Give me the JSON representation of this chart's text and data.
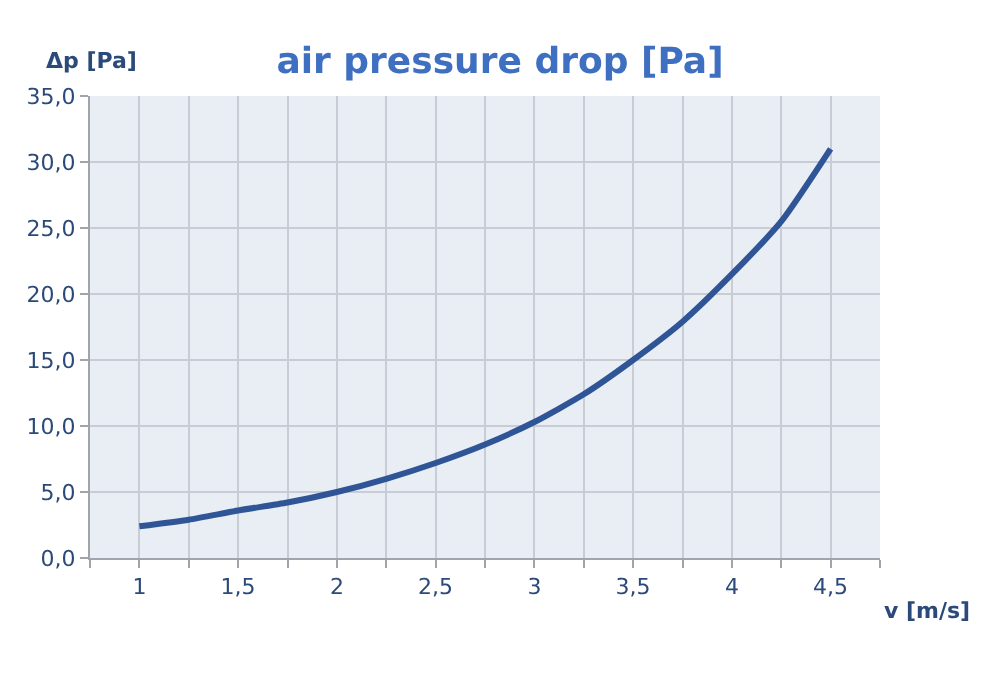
{
  "chart_data": {
    "type": "line",
    "title": "air pressure drop [Pa]",
    "xlabel": "v [m/s]",
    "ylabel": "Δp [Pa]",
    "x": [
      1,
      1.25,
      1.5,
      1.75,
      2,
      2.25,
      2.5,
      2.75,
      3,
      3.25,
      3.5,
      3.75,
      4,
      4.25,
      4.5
    ],
    "series": [
      {
        "color": "#2f5597",
        "values": [
          2.4,
          2.9,
          3.6,
          4.2,
          5.0,
          6.0,
          7.2,
          8.6,
          10.3,
          12.4,
          15.0,
          17.9,
          21.5,
          25.5,
          31.0
        ]
      }
    ],
    "xlim": [
      0.75,
      4.75
    ],
    "xticks": [
      {
        "value": 0.75,
        "label": null
      },
      {
        "value": 1,
        "label": "1"
      },
      {
        "value": 1.25,
        "label": null
      },
      {
        "value": 1.5,
        "label": "1,5"
      },
      {
        "value": 1.75,
        "label": null
      },
      {
        "value": 2,
        "label": "2"
      },
      {
        "value": 2.25,
        "label": null
      },
      {
        "value": 2.5,
        "label": "2,5"
      },
      {
        "value": 2.75,
        "label": null
      },
      {
        "value": 3,
        "label": "3"
      },
      {
        "value": 3.25,
        "label": null
      },
      {
        "value": 3.5,
        "label": "3,5"
      },
      {
        "value": 3.75,
        "label": null
      },
      {
        "value": 4,
        "label": "4"
      },
      {
        "value": 4.25,
        "label": null
      },
      {
        "value": 4.5,
        "label": "4,5"
      },
      {
        "value": 4.75,
        "label": null
      }
    ],
    "ylim": [
      0,
      35
    ],
    "yticks": [
      {
        "value": 0,
        "label": "0,0"
      },
      {
        "value": 5,
        "label": "5,0"
      },
      {
        "value": 10,
        "label": "10,0"
      },
      {
        "value": 15,
        "label": "15,0"
      },
      {
        "value": 20,
        "label": "20,0"
      },
      {
        "value": 25,
        "label": "25,0"
      },
      {
        "value": 30,
        "label": "30,0"
      },
      {
        "value": 35,
        "label": "35,0"
      }
    ],
    "grid": true,
    "marker": "none",
    "line_style": "solid"
  }
}
